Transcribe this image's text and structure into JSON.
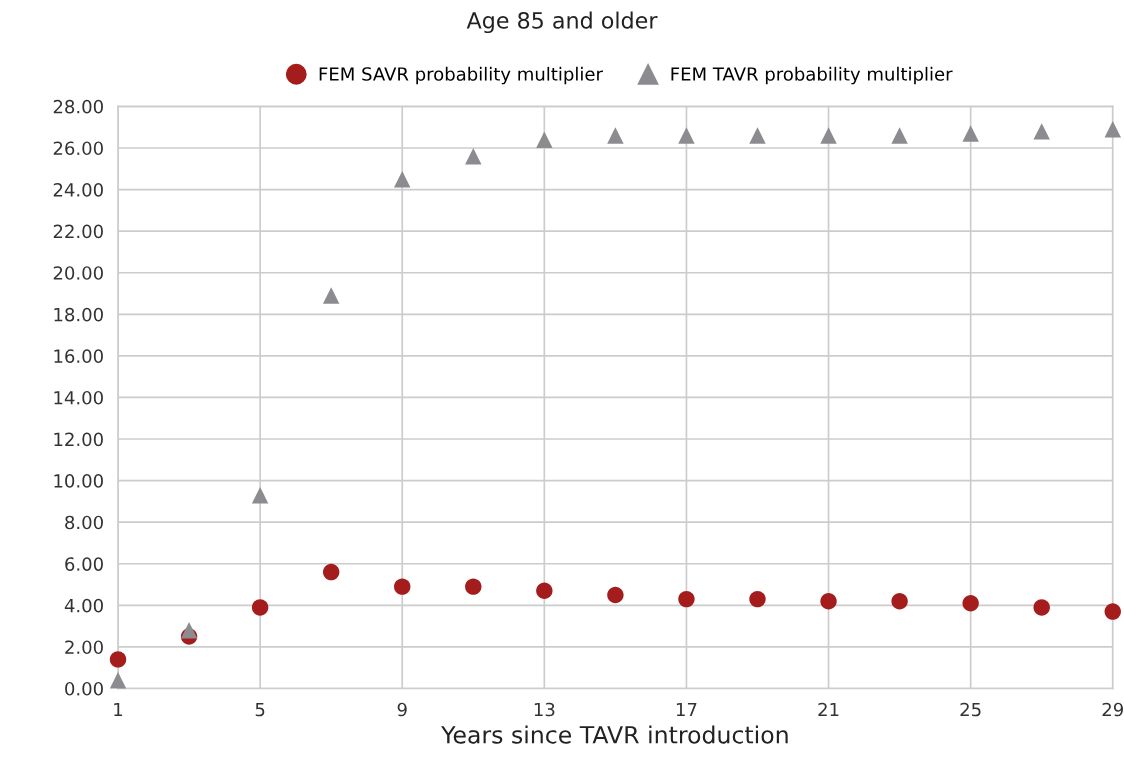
{
  "chart_data": {
    "type": "scatter",
    "title": "Age 85 and older",
    "xlabel": "Years since TAVR introduction",
    "x": [
      1,
      3,
      5,
      7,
      9,
      11,
      13,
      15,
      17,
      19,
      21,
      23,
      25,
      27,
      29
    ],
    "series": [
      {
        "name": "FEM SAVR probability multiplier",
        "color": "#a51c1c",
        "marker": "circle",
        "values": [
          1.4,
          2.5,
          3.9,
          5.6,
          4.9,
          4.9,
          4.7,
          4.5,
          4.3,
          4.3,
          4.2,
          4.2,
          4.1,
          3.9,
          3.7
        ]
      },
      {
        "name": "FEM TAVR probability multiplier",
        "color": "#8c8c90",
        "marker": "triangle",
        "values": [
          0.4,
          2.8,
          9.3,
          18.9,
          24.5,
          25.6,
          26.4,
          26.6,
          26.6,
          26.6,
          26.6,
          26.6,
          26.7,
          26.8,
          26.9
        ]
      }
    ],
    "xlim": [
      1,
      29
    ],
    "xticks": [
      1,
      5,
      9,
      13,
      17,
      21,
      25,
      29
    ],
    "ylim": [
      0,
      28
    ],
    "yticks": [
      {
        "value": 0,
        "label": "0.00"
      },
      {
        "value": 2,
        "label": "2.00"
      },
      {
        "value": 4,
        "label": "4.00"
      },
      {
        "value": 6,
        "label": "6.00"
      },
      {
        "value": 8,
        "label": "8.00"
      },
      {
        "value": 10,
        "label": "10.00"
      },
      {
        "value": 12,
        "label": "12.00"
      },
      {
        "value": 14,
        "label": "14.00"
      },
      {
        "value": 16,
        "label": "16.00"
      },
      {
        "value": 18,
        "label": "18.00"
      },
      {
        "value": 20,
        "label": "20.00"
      },
      {
        "value": 22,
        "label": "22.00"
      },
      {
        "value": 24,
        "label": "24.00"
      },
      {
        "value": 26,
        "label": "26.00"
      },
      {
        "value": 28,
        "label": "28.00"
      }
    ],
    "grid": true,
    "legend": "top"
  }
}
